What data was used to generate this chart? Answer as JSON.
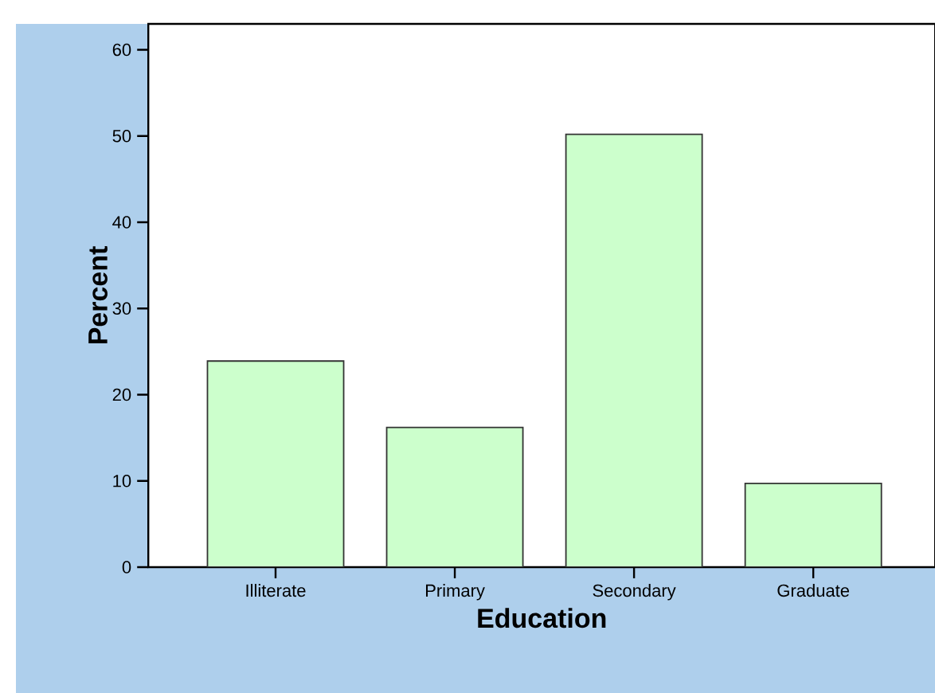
{
  "chart_data": {
    "type": "bar",
    "xlabel": "Education",
    "ylabel": "Percent",
    "categories": [
      "Illiterate",
      "Primary",
      "Secondary",
      "Graduate"
    ],
    "values": [
      23.9,
      16.2,
      50.2,
      9.7
    ],
    "color": "#ccffcc",
    "ylim": [
      0,
      63
    ],
    "yticks": [
      0,
      10,
      20,
      30,
      40,
      50,
      60
    ]
  }
}
